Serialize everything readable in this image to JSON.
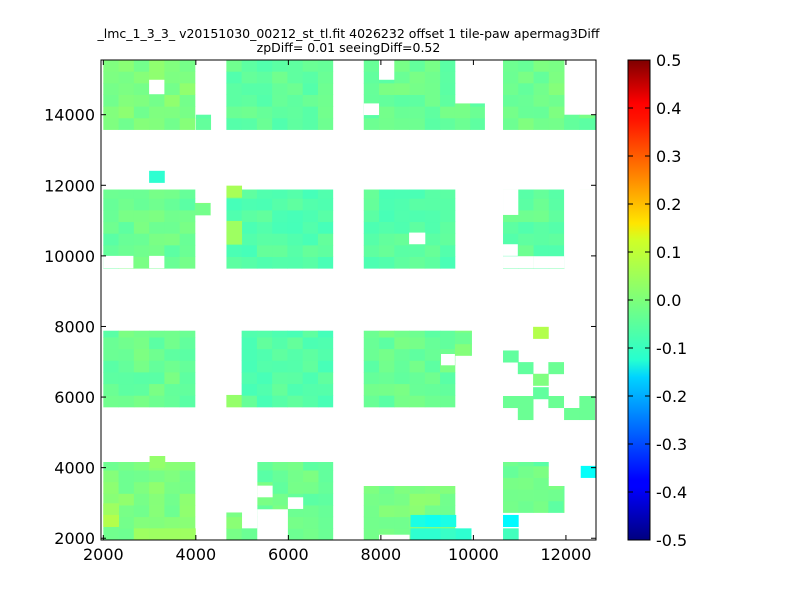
{
  "chart_data": {
    "type": "heatmap",
    "title_lines": [
      "_lmc_1_3_3_ v20151030_00212_st_tl.fit 4026232 offset 1 tile-paw apermag3Diff",
      "zpDiff= 0.01 seeingDiff=0.52"
    ],
    "xlabel": "",
    "ylabel": "",
    "xlim": [
      1950,
      12650
    ],
    "ylim": [
      1950,
      15550
    ],
    "x_ticks": [
      2000,
      4000,
      6000,
      8000,
      10000,
      12000
    ],
    "y_ticks": [
      2000,
      4000,
      6000,
      8000,
      10000,
      12000,
      14000
    ],
    "colorbar": {
      "colormap": "jet",
      "min": -0.5,
      "max": 0.5,
      "ticks": [
        "0.5",
        "0.4",
        "0.3",
        "0.2",
        "0.1",
        "0.0",
        "-0.1",
        "-0.2",
        "-0.3",
        "-0.4",
        "-0.5"
      ]
    },
    "cell_size": 330,
    "base_value": -0.02,
    "regions": [
      {
        "x": [
          2000,
          3980
        ],
        "y": [
          13580,
          15550
        ],
        "value": 0.0
      },
      {
        "x": [
          4000,
          4320
        ],
        "y": [
          13580,
          14000
        ],
        "value": -0.03
      },
      {
        "x": [
          4660,
          6960
        ],
        "y": [
          13580,
          15550
        ],
        "value": -0.03
      },
      {
        "x": [
          7630,
          9600
        ],
        "y": [
          13580,
          15550
        ],
        "value": -0.02
      },
      {
        "x": [
          9600,
          10240
        ],
        "y": [
          13580,
          14320
        ],
        "value": -0.02
      },
      {
        "x": [
          10640,
          11960
        ],
        "y": [
          13580,
          15550
        ],
        "value": -0.01
      },
      {
        "x": [
          11960,
          12650
        ],
        "y": [
          13580,
          14000
        ],
        "value": -0.02
      },
      {
        "x": [
          2000,
          3980
        ],
        "y": [
          9650,
          11880
        ],
        "value": -0.02
      },
      {
        "x": [
          3980,
          4320
        ],
        "y": [
          11160,
          11500
        ],
        "value": -0.01
      },
      {
        "x": [
          4660,
          6960
        ],
        "y": [
          9650,
          11880
        ],
        "value": -0.04
      },
      {
        "x": [
          7630,
          9600
        ],
        "y": [
          9650,
          11880
        ],
        "value": -0.04
      },
      {
        "x": [
          10640,
          11960
        ],
        "y": [
          9650,
          11880
        ],
        "value": -0.03
      },
      {
        "x": [
          12300,
          12650
        ],
        "y": [
          11500,
          11880
        ],
        "value": 0.0
      },
      {
        "x": [
          2000,
          3980
        ],
        "y": [
          5720,
          7880
        ],
        "value": -0.02
      },
      {
        "x": [
          4660,
          4990
        ],
        "y": [
          5720,
          6060
        ],
        "value": 0.02
      },
      {
        "x": [
          4990,
          6960
        ],
        "y": [
          5720,
          7880
        ],
        "value": -0.04
      },
      {
        "x": [
          7630,
          9600
        ],
        "y": [
          5720,
          7880
        ],
        "value": -0.02
      },
      {
        "x": [
          9600,
          9960
        ],
        "y": [
          7180,
          7880
        ],
        "value": -0.01
      },
      {
        "x": [
          2000,
          3980
        ],
        "y": [
          1950,
          4160
        ],
        "value": 0.0
      },
      {
        "x": [
          4660,
          4990
        ],
        "y": [
          1950,
          2730
        ],
        "value": 0.0
      },
      {
        "x": [
          5330,
          6960
        ],
        "y": [
          1950,
          4160
        ],
        "value": -0.02
      },
      {
        "x": [
          7630,
          9600
        ],
        "y": [
          1950,
          3480
        ],
        "value": 0.0
      },
      {
        "x": [
          9600,
          9960
        ],
        "y": [
          1950,
          2060
        ],
        "value": -0.08
      },
      {
        "x": [
          10640,
          11620
        ],
        "y": [
          2730,
          4160
        ],
        "value": -0.02
      },
      {
        "x": [
          11620,
          11960
        ],
        "y": [
          2730,
          3480
        ],
        "value": -0.02
      }
    ],
    "patches": [
      {
        "x": 2990,
        "y": 12080,
        "value": -0.08
      },
      {
        "x": 4660,
        "y": 11660,
        "value": 0.04
      },
      {
        "x": 4660,
        "y": 10660,
        "value": 0.03
      },
      {
        "x": 4660,
        "y": 10330,
        "value": 0.03
      },
      {
        "x": 11290,
        "y": 7660,
        "value": 0.05
      },
      {
        "x": 10640,
        "y": 6990,
        "value": -0.03
      },
      {
        "x": 10960,
        "y": 6660,
        "value": -0.03
      },
      {
        "x": 11290,
        "y": 6330,
        "value": 0.0
      },
      {
        "x": 11620,
        "y": 6660,
        "value": -0.02
      },
      {
        "x": 10640,
        "y": 5700,
        "value": -0.02
      },
      {
        "x": 10960,
        "y": 5700,
        "value": -0.02
      },
      {
        "x": 11290,
        "y": 5950,
        "value": -0.03
      },
      {
        "x": 11620,
        "y": 5700,
        "value": -0.02
      },
      {
        "x": 11960,
        "y": 5360,
        "value": -0.02
      },
      {
        "x": 10960,
        "y": 5360,
        "value": -0.02
      },
      {
        "x": 12290,
        "y": 5700,
        "value": -0.02
      },
      {
        "x": 12290,
        "y": 5360,
        "value": -0.02
      },
      {
        "x": 12320,
        "y": 3720,
        "value": -0.12
      },
      {
        "x": 2000,
        "y": 2660,
        "value": 0.03
      },
      {
        "x": 2000,
        "y": 2330,
        "value": 0.05
      },
      {
        "x": 2660,
        "y": 1950,
        "value": 0.03
      },
      {
        "x": 3000,
        "y": 1950,
        "value": 0.03
      },
      {
        "x": 3330,
        "y": 1950,
        "value": 0.03
      },
      {
        "x": 3660,
        "y": 1950,
        "value": 0.03
      },
      {
        "x": 4990,
        "y": 1950,
        "value": -0.02
      },
      {
        "x": 8640,
        "y": 2330,
        "value": -0.1
      },
      {
        "x": 8960,
        "y": 2330,
        "value": -0.11
      },
      {
        "x": 9290,
        "y": 2330,
        "value": -0.1
      },
      {
        "x": 8640,
        "y": 1950,
        "value": -0.08
      },
      {
        "x": 8960,
        "y": 1950,
        "value": -0.08
      },
      {
        "x": 9290,
        "y": 1950,
        "value": -0.07
      },
      {
        "x": 9620,
        "y": 1950,
        "value": -0.08
      },
      {
        "x": 10640,
        "y": 2330,
        "value": -0.13
      },
      {
        "x": 10640,
        "y": 1950,
        "value": -0.06
      },
      {
        "x": 3000,
        "y": 4000,
        "value": 0.02
      }
    ],
    "holes": [
      {
        "x": [
          2990,
          3320
        ],
        "y": [
          14580,
          14990
        ]
      },
      {
        "x": [
          7630,
          7960
        ],
        "y": [
          13990,
          14320
        ]
      },
      {
        "x": [
          7960,
          8290
        ],
        "y": [
          14990,
          15550
        ]
      },
      {
        "x": [
          8610,
          8960
        ],
        "y": [
          10330,
          10660
        ]
      },
      {
        "x": [
          2000,
          2650
        ],
        "y": [
          9650,
          10000
        ]
      },
      {
        "x": [
          2990,
          3320
        ],
        "y": [
          9650,
          10000
        ]
      },
      {
        "x": [
          4320,
          4660
        ],
        "y": [
          9650,
          12000
        ]
      },
      {
        "x": [
          10640,
          11290
        ],
        "y": [
          9650,
          9990
        ]
      },
      {
        "x": [
          11290,
          11960
        ],
        "y": [
          9650,
          9990
        ]
      },
      {
        "x": [
          10640,
          10960
        ],
        "y": [
          10000,
          10330
        ]
      },
      {
        "x": [
          10640,
          10970
        ],
        "y": [
          11160,
          11880
        ]
      },
      {
        "x": [
          11960,
          12650
        ],
        "y": [
          9650,
          11880
        ]
      },
      {
        "x": [
          9300,
          9600
        ],
        "y": [
          6900,
          7220
        ]
      },
      {
        "x": [
          5330,
          5660
        ],
        "y": [
          3160,
          3490
        ]
      },
      {
        "x": [
          5990,
          6320
        ],
        "y": [
          2830,
          3160
        ]
      },
      {
        "x": [
          5330,
          5990
        ],
        "y": [
          1950,
          2820
        ]
      },
      {
        "x": [
          7960,
          8620
        ],
        "y": [
          1950,
          2100
        ]
      },
      {
        "x": [
          9960,
          10640
        ],
        "y": [
          1950,
          2060
        ]
      }
    ]
  }
}
